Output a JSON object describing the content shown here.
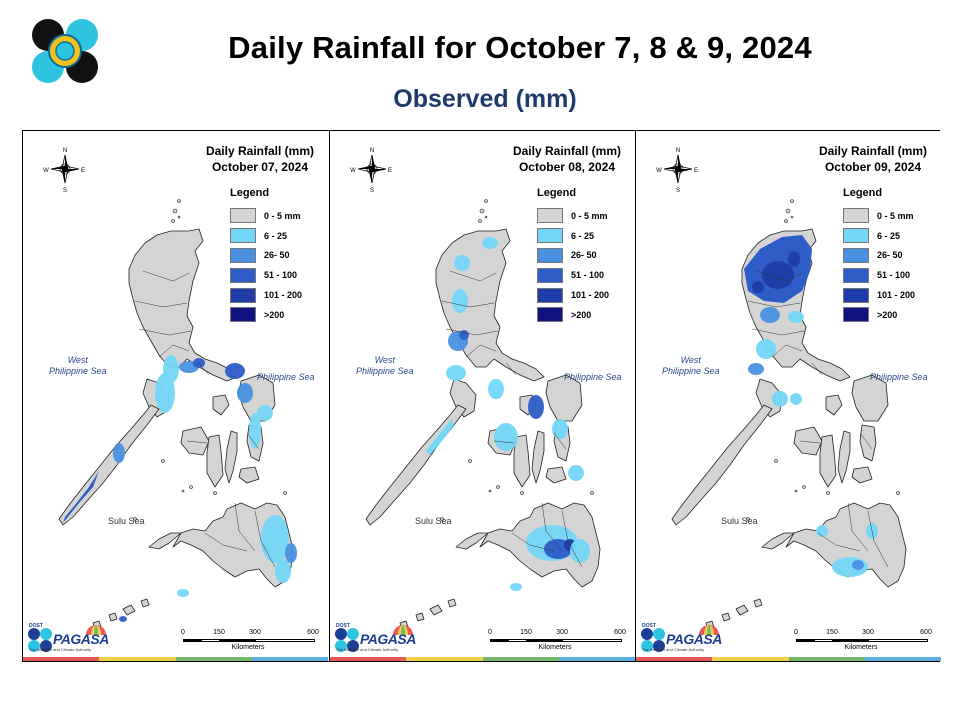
{
  "title": "Daily Rainfall for October 7, 8 & 9, 2024",
  "subtitle": "Observed (mm)",
  "legend": {
    "title": "Legend",
    "classes": [
      {
        "label": "0 - 5 mm",
        "color": "#d4d4d4"
      },
      {
        "label": "6 - 25",
        "color": "#74d7f7"
      },
      {
        "label": "26- 50",
        "color": "#4a90df"
      },
      {
        "label": "51 - 100",
        "color": "#2e5dc8"
      },
      {
        "label": "101 - 200",
        "color": "#1f3ca8"
      },
      {
        "label": ">200",
        "color": "#0f1280"
      }
    ]
  },
  "panels": [
    {
      "title_line1": "Daily Rainfall (mm)",
      "date": "October 07, 2024"
    },
    {
      "title_line1": "Daily Rainfall (mm)",
      "date": "October 08, 2024"
    },
    {
      "title_line1": "Daily Rainfall (mm)",
      "date": "October 09, 2024"
    }
  ],
  "seas": {
    "west": "West\nPhilippine Sea",
    "east": "Philippine Sea",
    "sulu": "Sulu Sea"
  },
  "compass": {
    "n": "N",
    "s": "S",
    "e": "E",
    "w": "W"
  },
  "scalebar": {
    "ticks": [
      "0",
      "150",
      "300",
      "600"
    ],
    "unit": "Kilometers"
  },
  "branding": {
    "agency": "PAGASA",
    "dost": "DOST",
    "tagline": "The Weather and Climate Authority"
  },
  "stripe_colors": [
    "#e85a5a",
    "#f0d04a",
    "#74b86a",
    "#5ab0e0"
  ]
}
